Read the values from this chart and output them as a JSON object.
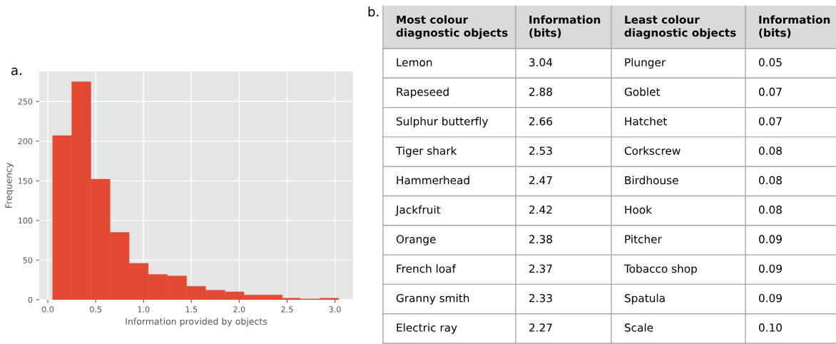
{
  "chart_data": [
    {
      "type": "histogram",
      "title": "a.",
      "xlabel": "Information provided by objects",
      "ylabel": "Frequency",
      "color": "#e24a33",
      "grid": true,
      "bins": [
        0.05,
        0.25,
        0.45,
        0.65,
        0.85,
        1.05,
        1.25,
        1.45,
        1.65,
        1.85,
        2.05,
        2.25,
        2.45,
        2.64,
        2.84,
        3.04
      ],
      "values": [
        207,
        275,
        152,
        85,
        46,
        32,
        30,
        17,
        12,
        10,
        6,
        6,
        2,
        1,
        2
      ],
      "xlim": [
        -0.09,
        3.19
      ],
      "ylim": [
        0,
        288
      ],
      "xticks": [
        {
          "value": 0,
          "label": "0.0"
        },
        0.5,
        {
          "value": 1,
          "label": "1.0"
        },
        1.5,
        {
          "value": 2,
          "label": "2.0"
        },
        2.5,
        {
          "value": 3,
          "label": "3.0"
        }
      ],
      "yticks": [
        0,
        50,
        100,
        150,
        200,
        250
      ]
    },
    {
      "type": "other",
      "title": "b.",
      "annotations": [
        "Most colour\ndiagnostic objects",
        "Information\n(bits)",
        "Least colour\ndiagnostic objects",
        "Information\n(bits)",
        "Lemon",
        "3.04",
        "Plunger",
        "0.05",
        "Rapeseed",
        "2.88",
        "Goblet",
        "0.07",
        "Sulphur butterfly",
        "2.66",
        "Hatchet",
        "0.07",
        "Tiger shark",
        "2.53",
        "Corkscrew",
        "0.08",
        "Hammerhead",
        "2.47",
        "Birdhouse",
        "0.08",
        "Jackfruit",
        "2.42",
        "Hook",
        "0.08",
        "Orange",
        "2.38",
        "Pitcher",
        "0.09",
        "French loaf",
        "2.37",
        "Tobacco shop",
        "0.09",
        "Granny smith",
        "2.33",
        "Spatula",
        "0.09",
        "Electric ray",
        "2.27",
        "Scale",
        "0.10"
      ]
    }
  ]
}
